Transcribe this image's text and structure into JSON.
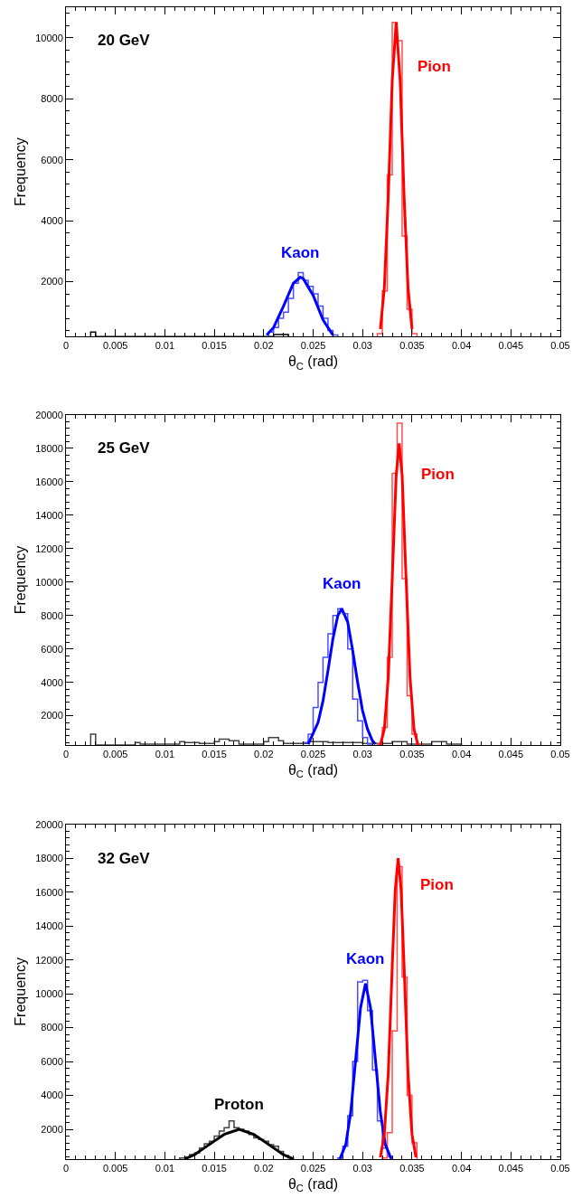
{
  "chart_data": [
    {
      "type": "line",
      "xlabel": "θ$_{C}$ (rad)",
      "ylabel": "Frequency",
      "annotations": [
        "20 GeV"
      ],
      "xlim": [
        0,
        0.05
      ],
      "xticks": [
        0,
        0.005,
        0.01,
        0.015,
        0.02,
        0.025,
        0.03,
        0.035,
        0.04,
        0.045,
        0.05
      ],
      "ylim": [
        200,
        11000
      ],
      "yticks": [
        2000,
        4000,
        6000,
        8000,
        10000
      ],
      "legend": false,
      "series": [
        {
          "type": "histogram",
          "color": "#000000",
          "bins": [
            0.0025,
            0.003,
            0.021,
            0.0225
          ],
          "values": [
            350,
            null,
            270
          ]
        },
        {
          "type": "histogram",
          "color": "#4d4dff",
          "bins": [
            0.0205,
            0.021,
            0.0215,
            0.022,
            0.0225,
            0.023,
            0.0235,
            0.024,
            0.0245,
            0.025,
            0.0255,
            0.026,
            0.0265,
            0.027,
            0.0275
          ],
          "values": [
            350,
            500,
            800,
            1000,
            1450,
            1950,
            2300,
            2050,
            1850,
            1600,
            1200,
            800,
            400,
            250
          ]
        },
        {
          "type": "histogram",
          "color": "#ff4d4d",
          "bins": [
            0.0315,
            0.032,
            0.0325,
            0.033,
            0.0335,
            0.034,
            0.0345,
            0.035,
            0.0355
          ],
          "values": [
            300,
            1700,
            5500,
            10500,
            9900,
            3500,
            1100,
            300
          ]
        },
        {
          "name": "Kaon",
          "color": "#0000ff",
          "x": [
            0.0203,
            0.021,
            0.022,
            0.023,
            0.0237,
            0.024,
            0.025,
            0.026,
            0.027
          ],
          "values": [
            250,
            500,
            1200,
            1950,
            2150,
            2100,
            1550,
            750,
            250
          ]
        },
        {
          "name": "Pion",
          "color": "#ff0000",
          "x": [
            0.0318,
            0.0322,
            0.0326,
            0.033,
            0.0334,
            0.0338,
            0.0342,
            0.0346,
            0.035
          ],
          "values": [
            450,
            1800,
            4800,
            8600,
            10500,
            8600,
            4800,
            1800,
            450
          ]
        }
      ]
    },
    {
      "type": "line",
      "xlabel": "θ$_{C}$ (rad)",
      "ylabel": "Frequency",
      "annotations": [
        "25 GeV"
      ],
      "xlim": [
        0,
        0.05
      ],
      "xticks": [
        0,
        0.005,
        0.01,
        0.015,
        0.02,
        0.025,
        0.03,
        0.035,
        0.04,
        0.045,
        0.05
      ],
      "ylim": [
        240,
        20000
      ],
      "yticks": [
        2000,
        4000,
        6000,
        8000,
        10000,
        12000,
        14000,
        16000,
        18000,
        20000
      ],
      "legend": false,
      "series": [
        {
          "type": "histogram",
          "color": "#444444",
          "bins": [
            0.0025,
            0.003,
            0.007,
            0.0075,
            0.0115,
            0.012,
            0.0135,
            0.015,
            0.0155,
            0.0165,
            0.0175,
            0.02,
            0.0205,
            0.0215,
            0.022,
            0.0245,
            0.0265,
            0.03,
            0.033,
            0.0345,
            0.037,
            0.0385,
            0.04
          ],
          "values": [
            900,
            250,
            400,
            300,
            450,
            400,
            350,
            450,
            600,
            500,
            300,
            450,
            700,
            500,
            350,
            450,
            400,
            350,
            450,
            300,
            450,
            300
          ]
        },
        {
          "type": "histogram",
          "color": "#4d4dff",
          "bins": [
            0.024,
            0.0245,
            0.025,
            0.0255,
            0.026,
            0.0265,
            0.027,
            0.0275,
            0.028,
            0.0285,
            0.029,
            0.0295,
            0.03,
            0.0305,
            0.031
          ],
          "values": [
            400,
            900,
            2500,
            4000,
            5500,
            6900,
            8000,
            8400,
            8100,
            6000,
            3000,
            1700,
            700,
            300
          ]
        },
        {
          "type": "histogram",
          "color": "#ff4d4d",
          "bins": [
            0.0315,
            0.032,
            0.0325,
            0.033,
            0.0335,
            0.034,
            0.0345,
            0.035,
            0.0355,
            0.036
          ],
          "values": [
            300,
            1300,
            5500,
            16500,
            19500,
            10200,
            3200,
            900,
            300
          ]
        },
        {
          "name": "Kaon",
          "color": "#0000ff",
          "x": [
            0.0245,
            0.0255,
            0.026,
            0.0265,
            0.027,
            0.0275,
            0.0279,
            0.0285,
            0.029,
            0.0295,
            0.03,
            0.0305,
            0.031,
            0.0313
          ],
          "values": [
            300,
            1600,
            2900,
            4700,
            6600,
            8000,
            8400,
            7600,
            5900,
            4000,
            2300,
            1200,
            500,
            300
          ]
        },
        {
          "name": "Pion",
          "color": "#ff0000",
          "x": [
            0.0318,
            0.0322,
            0.0326,
            0.033,
            0.0334,
            0.0337,
            0.034,
            0.0344,
            0.0348,
            0.0352,
            0.0356
          ],
          "values": [
            250,
            1200,
            4300,
            10200,
            16400,
            18300,
            16400,
            10200,
            4300,
            1200,
            250
          ]
        }
      ]
    },
    {
      "type": "line",
      "xlabel": "θ$_{C}$ (rad)",
      "ylabel": "Frequency",
      "annotations": [
        "32 GeV"
      ],
      "xlim": [
        0,
        0.05
      ],
      "xticks": [
        0,
        0.005,
        0.01,
        0.015,
        0.02,
        0.025,
        0.03,
        0.035,
        0.04,
        0.045,
        0.05
      ],
      "ylim": [
        240,
        20000
      ],
      "yticks": [
        2000,
        4000,
        6000,
        8000,
        10000,
        12000,
        14000,
        16000,
        18000,
        20000
      ],
      "legend": false,
      "series": [
        {
          "type": "histogram",
          "color": "#444444",
          "bins": [
            0.0115,
            0.012,
            0.0125,
            0.013,
            0.0135,
            0.014,
            0.0145,
            0.015,
            0.0155,
            0.016,
            0.0165,
            0.017,
            0.0175,
            0.018,
            0.0185,
            0.019,
            0.0195,
            0.02,
            0.0205,
            0.021,
            0.0215,
            0.022,
            0.0225,
            0.023
          ],
          "values": [
            300,
            350,
            500,
            600,
            900,
            1150,
            1300,
            1600,
            1900,
            2100,
            2500,
            2100,
            2000,
            1900,
            1700,
            1500,
            1400,
            1300,
            1100,
            1000,
            700,
            450,
            300
          ]
        },
        {
          "type": "histogram",
          "color": "#4d4dff",
          "bins": [
            0.0275,
            0.028,
            0.0285,
            0.029,
            0.0295,
            0.03,
            0.0305,
            0.031,
            0.0315,
            0.032,
            0.0325,
            0.033
          ],
          "values": [
            300,
            1000,
            2800,
            6000,
            10700,
            10800,
            9000,
            5500,
            2500,
            900,
            400
          ]
        },
        {
          "type": "histogram",
          "color": "#ff4d4d",
          "bins": [
            0.032,
            0.0325,
            0.033,
            0.0335,
            0.034,
            0.0345,
            0.035,
            0.0355
          ],
          "values": [
            300,
            1800,
            7800,
            17500,
            11000,
            4000,
            1200
          ]
        },
        {
          "name": "Proton",
          "color": "#000000",
          "x": [
            0.012,
            0.013,
            0.014,
            0.015,
            0.016,
            0.0175,
            0.019,
            0.02,
            0.021,
            0.022,
            0.023
          ],
          "values": [
            250,
            500,
            900,
            1300,
            1700,
            2000,
            1700,
            1300,
            900,
            500,
            250
          ]
        },
        {
          "name": "Kaon",
          "color": "#0000ff",
          "x": [
            0.0277,
            0.0283,
            0.0288,
            0.0293,
            0.0298,
            0.0303,
            0.0308,
            0.0313,
            0.0318,
            0.0323,
            0.0329
          ],
          "values": [
            250,
            1100,
            3000,
            6100,
            9200,
            10600,
            9200,
            6100,
            3000,
            1100,
            250
          ]
        },
        {
          "name": "Pion",
          "color": "#ff0000",
          "x": [
            0.0318,
            0.0322,
            0.0326,
            0.033,
            0.0333,
            0.0336,
            0.0339,
            0.0342,
            0.0346,
            0.035,
            0.0354
          ],
          "values": [
            350,
            1700,
            5300,
            11600,
            16100,
            18000,
            16100,
            11600,
            5300,
            1700,
            350
          ]
        }
      ]
    }
  ]
}
